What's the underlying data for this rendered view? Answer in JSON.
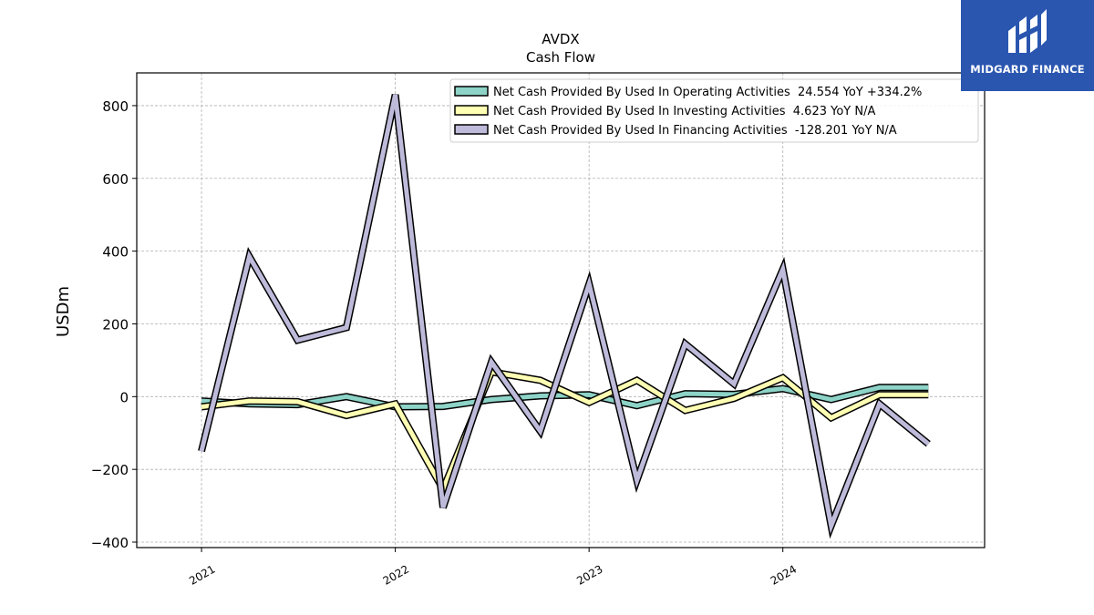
{
  "brand": {
    "name": "MIDGARD FINANCE",
    "bg_color": "#2a56b0"
  },
  "chart_data": {
    "type": "line",
    "title": "AVDX",
    "subtitle": "Cash Flow",
    "xlabel": "",
    "ylabel": "USDm",
    "x": [
      "2021-01-01",
      "2021-04-01",
      "2021-07-01",
      "2021-10-01",
      "2022-01-01",
      "2022-04-01",
      "2022-07-01",
      "2022-10-01",
      "2023-01-01",
      "2023-04-01",
      "2023-07-01",
      "2023-10-01",
      "2024-01-01",
      "2024-04-01",
      "2024-07-01",
      "2024-10-01"
    ],
    "x_ticks": [
      "2021",
      "2022",
      "2023",
      "2024"
    ],
    "y_ticks": [
      -400,
      -200,
      0,
      200,
      400,
      600,
      800
    ],
    "y_tick_labels": [
      "−400",
      "−200",
      "0",
      "200",
      "400",
      "600",
      "800"
    ],
    "ylim": [
      -415,
      890
    ],
    "xlim": [
      "2020-09-01",
      "2025-01-15"
    ],
    "grid": true,
    "legend_position": "top-right",
    "series": [
      {
        "name": "Net Cash Provided By Used In Operating Activities",
        "legend_label": "Net Cash Provided By Used In Operating Activities  24.554 YoY +334.2%",
        "color": "#8dd3c7",
        "values": [
          -12,
          -20,
          -22,
          0,
          -28,
          -27,
          -8,
          2,
          5,
          -25,
          8,
          6,
          22,
          -8,
          25,
          25
        ]
      },
      {
        "name": "Net Cash Provided By Used In Investing Activities",
        "legend_label": "Net Cash Provided By Used In Investing Activities  4.623 YoY N/A",
        "color": "#ffffb3",
        "values": [
          -28,
          -12,
          -14,
          -52,
          -20,
          -255,
          68,
          45,
          -16,
          45,
          -38,
          -5,
          52,
          -58,
          5,
          5
        ]
      },
      {
        "name": "Net Cash Provided By Used In Financing Activities",
        "legend_label": "Net Cash Provided By Used In Financing Activities  -128.201 YoY N/A",
        "color": "#bebada",
        "values": [
          -150,
          385,
          155,
          190,
          830,
          -305,
          95,
          -95,
          310,
          -230,
          145,
          35,
          350,
          -355,
          -20,
          -130
        ]
      }
    ]
  }
}
